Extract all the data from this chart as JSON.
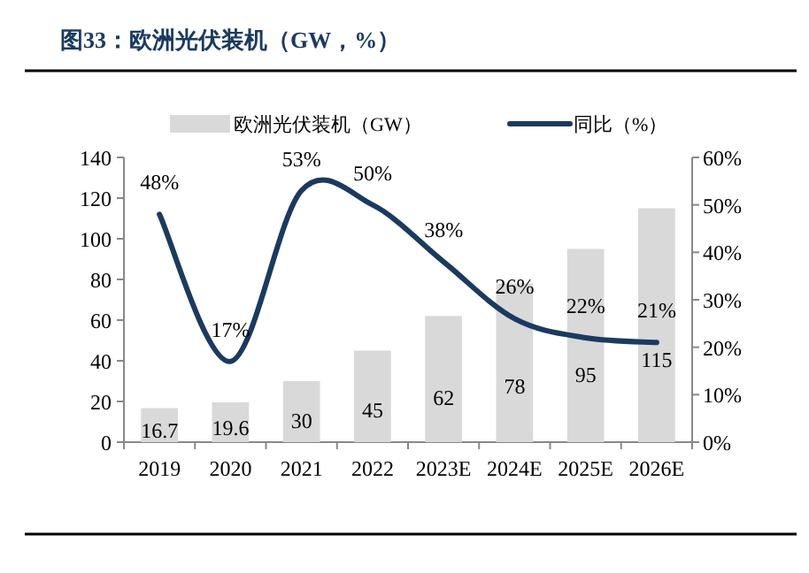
{
  "chart_data": {
    "type": "bar",
    "title": "图33：欧洲光伏装机（GW，%）",
    "categories": [
      "2019",
      "2020",
      "2021",
      "2022",
      "2023E",
      "2024E",
      "2025E",
      "2026E"
    ],
    "series": [
      {
        "name": "欧洲光伏装机（GW）",
        "color": "#d9d9d9",
        "values": [
          16.7,
          19.6,
          30,
          45,
          62,
          78,
          95,
          115
        ],
        "value_labels": [
          "16.7",
          "19.6",
          "30",
          "45",
          "62",
          "78",
          "95",
          "115"
        ]
      },
      {
        "name": "同比（%）",
        "type": "line",
        "axis": "y2",
        "color": "#1b3a5f",
        "values": [
          48,
          17,
          53,
          50,
          38,
          26,
          22,
          21
        ],
        "value_labels": [
          "48%",
          "17%",
          "53%",
          "50%",
          "38%",
          "26%",
          "22%",
          "21%"
        ]
      }
    ],
    "ylim": [
      0,
      140
    ],
    "yticks": [
      0,
      20,
      40,
      60,
      80,
      100,
      120,
      140
    ],
    "y2lim": [
      0,
      60
    ],
    "y2ticks": [
      {
        "value": 0,
        "label": "0%"
      },
      {
        "value": 10,
        "label": "10%"
      },
      {
        "value": 20,
        "label": "20%"
      },
      {
        "value": 30,
        "label": "30%"
      },
      {
        "value": 40,
        "label": "40%"
      },
      {
        "value": 50,
        "label": "50%"
      },
      {
        "value": 60,
        "label": "60%"
      }
    ],
    "legend": "top"
  }
}
